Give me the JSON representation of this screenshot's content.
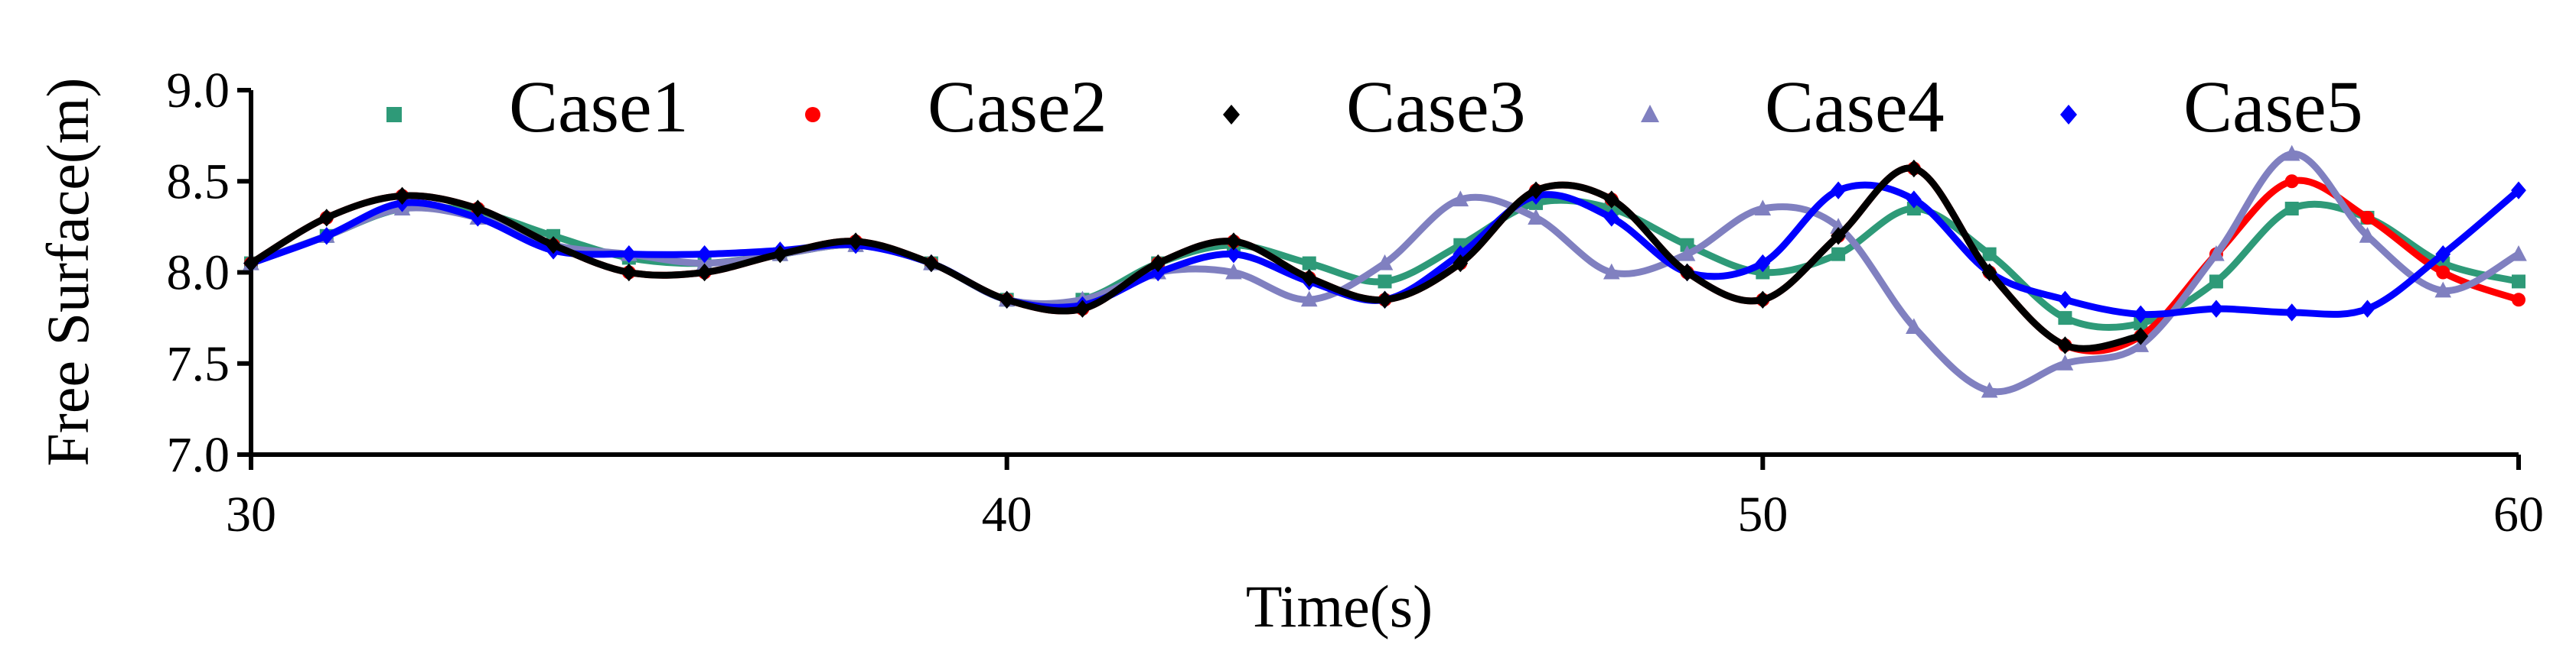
{
  "chart_data": {
    "type": "line",
    "xlabel": "Time(s)",
    "ylabel": "Free Surface(m)",
    "x": [
      30,
      31,
      32,
      33,
      34,
      35,
      36,
      37,
      38,
      39,
      40,
      41,
      42,
      43,
      44,
      45,
      46,
      47,
      48,
      49,
      50,
      51,
      52,
      53,
      54,
      55,
      56,
      57,
      58,
      59,
      60
    ],
    "series": [
      {
        "name": "Case1",
        "color": "#2e9a78",
        "marker": "square",
        "values": [
          8.05,
          8.2,
          8.35,
          8.33,
          8.2,
          8.08,
          8.05,
          8.1,
          8.15,
          8.05,
          7.85,
          7.85,
          8.05,
          8.15,
          8.05,
          7.95,
          8.15,
          8.38,
          8.35,
          8.15,
          8.0,
          8.1,
          8.35,
          8.1,
          7.75,
          7.72,
          7.95,
          8.35,
          8.3,
          8.05,
          7.95
        ]
      },
      {
        "name": "Case2",
        "color": "#ff0000",
        "marker": "circle",
        "values": [
          8.05,
          8.3,
          8.42,
          8.35,
          8.15,
          8.0,
          8.0,
          8.1,
          8.17,
          8.05,
          7.85,
          7.8,
          8.05,
          8.17,
          7.97,
          7.85,
          8.05,
          8.45,
          8.4,
          8.0,
          7.85,
          8.2,
          8.57,
          8.0,
          7.6,
          7.65,
          8.1,
          8.5,
          8.3,
          8.0,
          7.85
        ]
      },
      {
        "name": "Case4",
        "color": "#8080c0",
        "marker": "triangle",
        "values": [
          8.05,
          8.2,
          8.35,
          8.3,
          8.15,
          8.1,
          8.05,
          8.1,
          8.15,
          8.05,
          7.85,
          7.85,
          8.0,
          8.0,
          7.85,
          8.05,
          8.4,
          8.3,
          8.0,
          8.1,
          8.35,
          8.25,
          7.7,
          7.35,
          7.5,
          7.6,
          8.1,
          8.65,
          8.2,
          7.9,
          8.1
        ]
      },
      {
        "name": "Case5",
        "color": "#0000ff",
        "marker": "diamond",
        "values": [
          8.05,
          8.2,
          8.38,
          8.3,
          8.12,
          8.1,
          8.1,
          8.12,
          8.15,
          8.05,
          7.85,
          7.82,
          8.0,
          8.1,
          7.95,
          7.85,
          8.1,
          8.42,
          8.3,
          8.0,
          8.05,
          8.45,
          8.4,
          8.0,
          7.85,
          7.77,
          7.8,
          7.78,
          7.8,
          8.1,
          8.45
        ]
      },
      {
        "name": "Case3",
        "color": "#000000",
        "marker": "diamond",
        "values": [
          8.05,
          8.3,
          8.42,
          8.35,
          8.15,
          8.0,
          8.0,
          8.1,
          8.17,
          8.05,
          7.85,
          7.8,
          8.05,
          8.17,
          7.97,
          7.85,
          8.05,
          8.45,
          8.4,
          8.0,
          7.85,
          8.2,
          8.57,
          8.0,
          7.6,
          7.65,
          null,
          null,
          null,
          null,
          null
        ]
      }
    ],
    "legend_order": [
      0,
      1,
      4,
      2,
      3
    ],
    "xlim": [
      30,
      60
    ],
    "xticks": [
      30,
      40,
      50,
      60
    ],
    "ylim": [
      7.0,
      9.0
    ],
    "yticks": [
      {
        "value": 7.0,
        "label": "7.0"
      },
      7.5,
      {
        "value": 8.0,
        "label": "8.0"
      },
      8.5,
      {
        "value": 9.0,
        "label": "9.0"
      }
    ],
    "grid": false
  }
}
